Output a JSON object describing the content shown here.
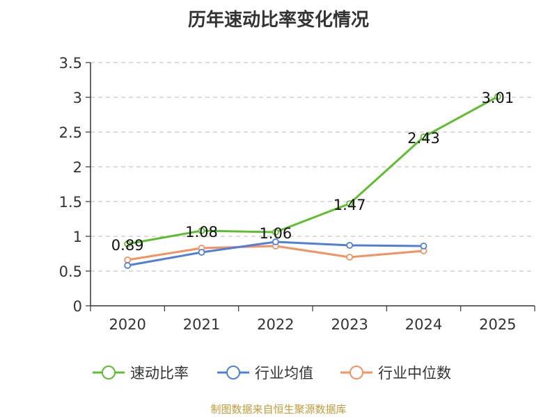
{
  "title": "历年速动比率变化情况",
  "source": "制图数据来自恒生聚源数据库",
  "chart_data": {
    "type": "line",
    "categories": [
      "2020",
      "2021",
      "2022",
      "2023",
      "2024",
      "2025"
    ],
    "ylim": [
      0,
      3.5
    ],
    "yticks": [
      0,
      0.5,
      1,
      1.5,
      2,
      2.5,
      3,
      3.5
    ],
    "ytick_labels": [
      "0",
      "0.5",
      "1",
      "1.5",
      "2",
      "2.5",
      "3",
      "3.5"
    ],
    "grid": true,
    "legend_position": "bottom",
    "series": [
      {
        "name": "速动比率",
        "color": "#5dbf2e",
        "values": [
          0.89,
          1.08,
          1.06,
          1.47,
          2.43,
          3.01
        ],
        "data_labels": [
          "0.89",
          "1.08",
          "1.06",
          "1.47",
          "2.43",
          "3.01"
        ]
      },
      {
        "name": "行业均值",
        "color": "#4f7fd9",
        "values": [
          0.58,
          0.77,
          0.92,
          0.87,
          0.86,
          null
        ]
      },
      {
        "name": "行业中位数",
        "color": "#f5915e",
        "values": [
          0.66,
          0.83,
          0.86,
          0.7,
          0.79,
          null
        ]
      }
    ]
  }
}
